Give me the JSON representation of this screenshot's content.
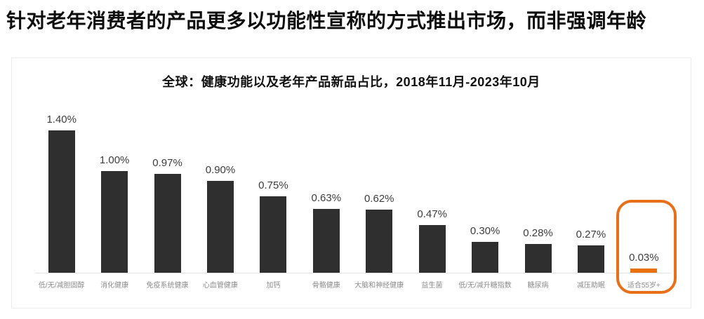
{
  "page": {
    "main_title": "针对老年消费者的产品更多以功能性宣称的方式推出市场，而非强调年龄"
  },
  "chart_data": {
    "type": "bar",
    "title": "全球：健康功能以及老年产品新品占比，2018年11月-2023年10月",
    "categories": [
      "低/无/减胆固醇",
      "消化健康",
      "免疫系统健康",
      "心血管健康",
      "加钙",
      "骨骼健康",
      "大脑和神经健康",
      "益生菌",
      "低/无/减升糖指数",
      "糖尿病",
      "减压助眠",
      "适合55岁+"
    ],
    "values": [
      1.4,
      1.0,
      0.97,
      0.9,
      0.75,
      0.63,
      0.62,
      0.47,
      0.3,
      0.28,
      0.27,
      0.03
    ],
    "value_labels": [
      "1.40%",
      "1.00%",
      "0.97%",
      "0.90%",
      "0.75%",
      "0.63%",
      "0.62%",
      "0.47%",
      "0.30%",
      "0.28%",
      "0.27%",
      "0.03%"
    ],
    "unit": "%",
    "ylim": [
      0,
      1.5
    ],
    "grid": false,
    "legend": null,
    "xlabel": "",
    "ylabel": "",
    "highlight": {
      "index": 11,
      "category": "适合55岁+",
      "style": "orange-rounded-outline"
    },
    "colors": {
      "bar": "#2f2f2f",
      "highlight_bar": "#e8700f",
      "highlight_outline": "#e8701a",
      "value_label": "#3d3d3d",
      "category_label": "#8c8c8c",
      "baseline": "#e1e1e1"
    }
  }
}
